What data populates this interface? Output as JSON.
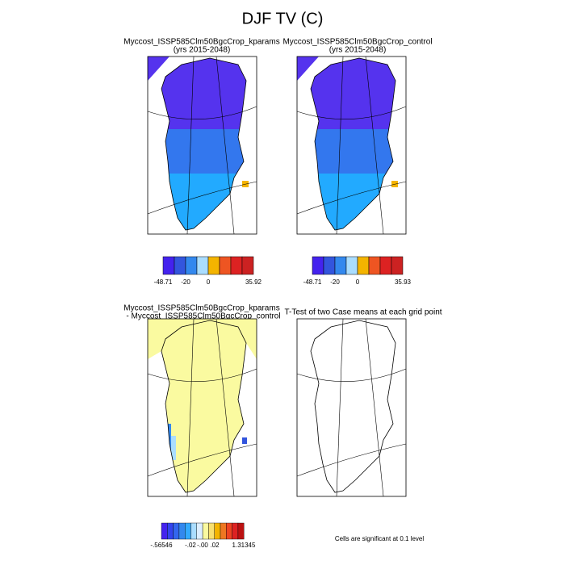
{
  "title": "DJF TV (C)",
  "panels": [
    {
      "title": "Myccost_ISSP585Clm50BgcCrop_kparams",
      "subtitle": "(yrs 2015-2048)",
      "colorbar_labels": [
        "-48.71",
        "-20",
        "0",
        "35.92"
      ]
    },
    {
      "title": "Myccost_ISSP585Clm50BgcCrop_control",
      "subtitle": "(yrs 2015-2048)",
      "colorbar_labels": [
        "-48.71",
        "-20",
        "0",
        "35.93"
      ]
    },
    {
      "title": "Myccost_ISSP585Clm50BgcCrop_kparams",
      "subtitle": "- Myccost_ISSP585Clm50BgcCrop_control",
      "colorbar_labels": [
        "-.56546",
        "-.02",
        "-.00",
        ".02",
        "1.31345"
      ]
    },
    {
      "title": "T-Test of two Case means at each grid point",
      "footnote": "Cells are significant at 0.1 level"
    }
  ]
}
